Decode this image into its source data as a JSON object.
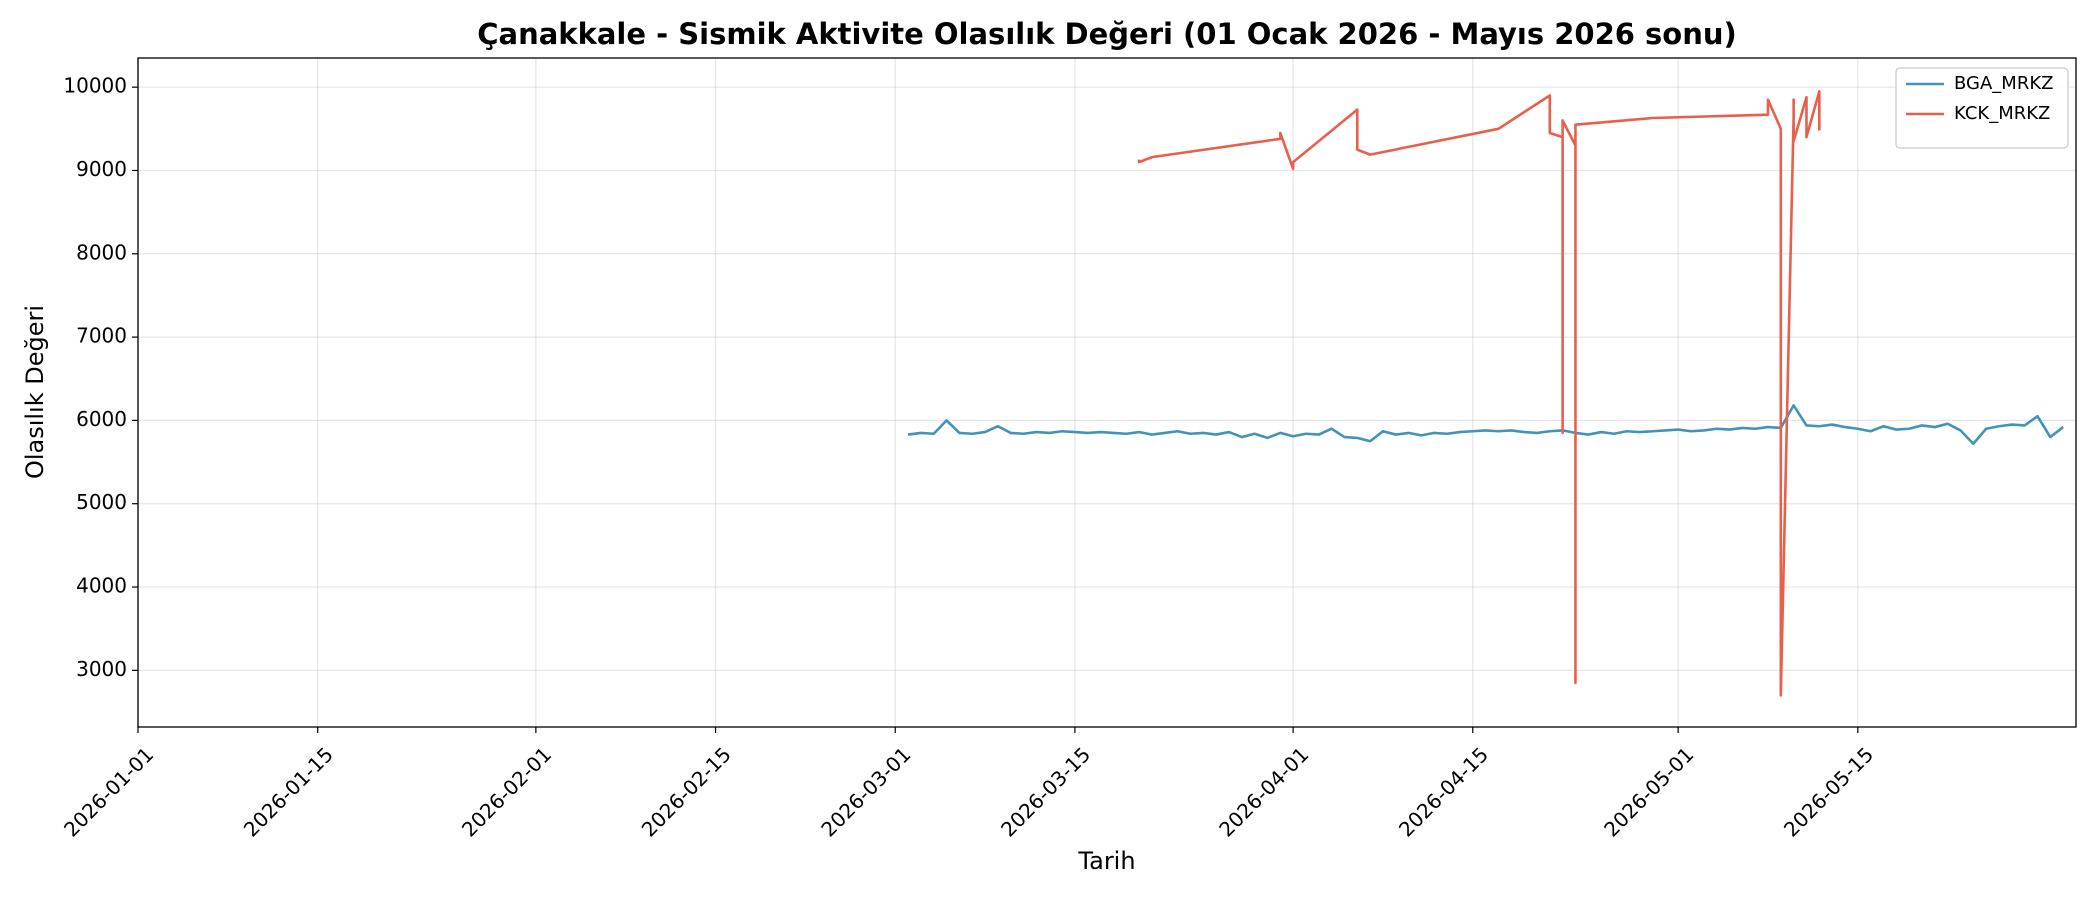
{
  "chart_data": {
    "type": "line",
    "title": "Çanakkale - Sismik Aktivite Olasılık Değeri (01 Ocak 2026 - Mayıs 2026 sonu)",
    "x_label": "Tarih",
    "y_label": "Olasılık Değeri",
    "xlim": [
      "2026-01-01",
      "2026-06-01"
    ],
    "xticks": [
      "2026-01-01",
      "2026-01-15",
      "2026-02-01",
      "2026-02-15",
      "2026-03-01",
      "2026-03-15",
      "2026-04-01",
      "2026-04-15",
      "2026-05-01",
      "2026-05-15"
    ],
    "ylim": [
      2320,
      10350
    ],
    "yticks": [
      3000,
      4000,
      5000,
      6000,
      7000,
      8000,
      9000,
      10000
    ],
    "grid": true,
    "legend": "upper right",
    "series": [
      {
        "name": "BGA_MRKZ",
        "color": "#4393b8",
        "x": [
          "2026-03-02",
          "2026-03-03",
          "2026-03-04",
          "2026-03-05",
          "2026-03-06",
          "2026-03-07",
          "2026-03-08",
          "2026-03-09",
          "2026-03-10",
          "2026-03-11",
          "2026-03-12",
          "2026-03-13",
          "2026-03-14",
          "2026-03-15",
          "2026-03-16",
          "2026-03-17",
          "2026-03-18",
          "2026-03-19",
          "2026-03-20",
          "2026-03-21",
          "2026-03-22",
          "2026-03-23",
          "2026-03-24",
          "2026-03-25",
          "2026-03-26",
          "2026-03-27",
          "2026-03-28",
          "2026-03-29",
          "2026-03-30",
          "2026-03-31",
          "2026-04-01",
          "2026-04-02",
          "2026-04-03",
          "2026-04-04",
          "2026-04-05",
          "2026-04-06",
          "2026-04-07",
          "2026-04-08",
          "2026-04-09",
          "2026-04-10",
          "2026-04-11",
          "2026-04-12",
          "2026-04-13",
          "2026-04-14",
          "2026-04-15",
          "2026-04-16",
          "2026-04-17",
          "2026-04-18",
          "2026-04-19",
          "2026-04-20",
          "2026-04-21",
          "2026-04-22",
          "2026-04-23",
          "2026-04-24",
          "2026-04-25",
          "2026-04-26",
          "2026-04-27",
          "2026-04-28",
          "2026-04-29",
          "2026-04-30",
          "2026-05-01",
          "2026-05-02",
          "2026-05-03",
          "2026-05-04",
          "2026-05-05",
          "2026-05-06",
          "2026-05-07",
          "2026-05-08",
          "2026-05-09",
          "2026-05-10",
          "2026-05-11",
          "2026-05-12",
          "2026-05-13",
          "2026-05-14",
          "2026-05-15",
          "2026-05-16",
          "2026-05-17",
          "2026-05-18",
          "2026-05-19",
          "2026-05-20",
          "2026-05-21",
          "2026-05-22",
          "2026-05-23",
          "2026-05-24",
          "2026-05-25",
          "2026-05-26",
          "2026-05-27",
          "2026-05-28",
          "2026-05-29",
          "2026-05-30",
          "2026-05-31"
        ],
        "values": [
          5830,
          5850,
          5840,
          6000,
          5850,
          5840,
          5860,
          5930,
          5850,
          5840,
          5860,
          5850,
          5870,
          5860,
          5850,
          5860,
          5850,
          5840,
          5860,
          5830,
          5850,
          5870,
          5840,
          5850,
          5830,
          5860,
          5800,
          5840,
          5790,
          5850,
          5810,
          5840,
          5830,
          5900,
          5800,
          5790,
          5750,
          5870,
          5830,
          5850,
          5820,
          5850,
          5840,
          5860,
          5870,
          5880,
          5870,
          5880,
          5860,
          5850,
          5870,
          5880,
          5850,
          5830,
          5860,
          5840,
          5870,
          5860,
          5870,
          5880,
          5890,
          5870,
          5880,
          5900,
          5890,
          5910,
          5900,
          5920,
          5910,
          6180,
          5940,
          5930,
          5950,
          5920,
          5900,
          5870,
          5930,
          5890,
          5900,
          5940,
          5920,
          5960,
          5880,
          5720,
          5900,
          5930,
          5950,
          5940,
          6050,
          5800,
          5920
        ]
      },
      {
        "name": "KCK_MRKZ",
        "color": "#e8604c",
        "x": [
          "2026-03-20",
          "2026-03-20",
          "2026-03-21",
          "2026-03-31",
          "2026-03-31",
          "2026-04-01",
          "2026-04-01",
          "2026-04-06",
          "2026-04-06",
          "2026-04-07",
          "2026-04-17",
          "2026-04-21",
          "2026-04-21",
          "2026-04-22",
          "2026-04-22",
          "2026-04-22",
          "2026-04-23",
          "2026-04-23",
          "2026-04-23",
          "2026-04-29",
          "2026-05-08",
          "2026-05-08",
          "2026-05-09",
          "2026-05-09",
          "2026-05-09",
          "2026-05-10",
          "2026-05-10",
          "2026-05-10",
          "2026-05-11",
          "2026-05-11",
          "2026-05-12",
          "2026-05-12"
        ],
        "values": [
          9130,
          9100,
          9160,
          9380,
          9450,
          9020,
          9100,
          9730,
          9250,
          9190,
          9500,
          9900,
          9450,
          9400,
          5850,
          9600,
          9300,
          2850,
          9550,
          9630,
          9670,
          9850,
          9500,
          9400,
          2700,
          9650,
          9850,
          9350,
          9880,
          9400,
          9950,
          9480
        ]
      }
    ]
  }
}
